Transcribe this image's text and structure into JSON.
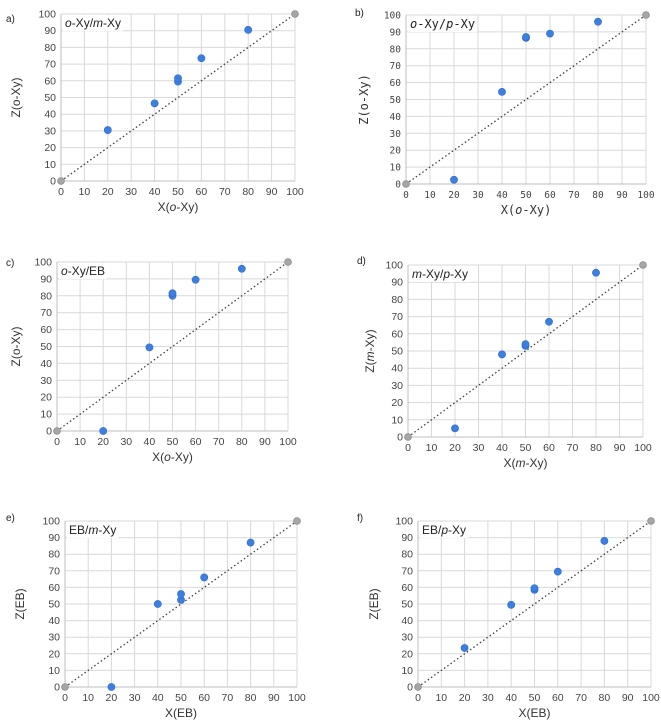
{
  "chart_data": [
    {
      "panel": "a)",
      "type": "scatter",
      "title": "o-Xy/m-Xy",
      "title_parts": [
        {
          "t": "o",
          "i": true
        },
        {
          "t": "-Xy/",
          "i": false
        },
        {
          "t": "m",
          "i": true
        },
        {
          "t": "-Xy",
          "i": false
        }
      ],
      "xlabel": "X(o-Xy)",
      "xlabel_parts": [
        {
          "t": "X(",
          "i": false
        },
        {
          "t": "o",
          "i": true
        },
        {
          "t": "-Xy)",
          "i": false
        }
      ],
      "ylabel": "Z(o-Xy)",
      "ylabel_parts": [
        {
          "t": "Z(o-Xy)",
          "i": false
        }
      ],
      "xlim": [
        0,
        100
      ],
      "ylim": [
        0,
        100
      ],
      "ticks": [
        0,
        10,
        20,
        30,
        40,
        50,
        60,
        70,
        80,
        90,
        100
      ],
      "x": [
        20,
        40,
        50,
        50,
        60,
        80
      ],
      "y": [
        30.5,
        46.5,
        59.5,
        61.5,
        73.5,
        90.5
      ],
      "diagonal_endpoints": [
        [
          0,
          0
        ],
        [
          100,
          100
        ]
      ],
      "monospace": false
    },
    {
      "panel": "b)",
      "type": "scatter",
      "title": "o-Xy/p-Xy",
      "title_parts": [
        {
          "t": "o",
          "i": true
        },
        {
          "t": "-Xy/",
          "i": false
        },
        {
          "t": "p",
          "i": true
        },
        {
          "t": "-Xy",
          "i": false
        }
      ],
      "xlabel": "X(o-Xy)",
      "xlabel_parts": [
        {
          "t": "X(",
          "i": false
        },
        {
          "t": "o",
          "i": true
        },
        {
          "t": "-Xy)",
          "i": false
        }
      ],
      "ylabel": "Z(o-Xy)",
      "ylabel_parts": [
        {
          "t": "Z(o-Xy)",
          "i": false
        }
      ],
      "xlim": [
        0,
        100
      ],
      "ylim": [
        0,
        100
      ],
      "ticks": [
        0,
        10,
        20,
        30,
        40,
        50,
        60,
        70,
        80,
        90,
        100
      ],
      "x": [
        20,
        40,
        50,
        50,
        60,
        80
      ],
      "y": [
        2.5,
        54.5,
        86.5,
        87,
        89,
        96
      ],
      "diagonal_endpoints": [
        [
          0,
          0
        ],
        [
          100,
          100
        ]
      ],
      "monospace": true
    },
    {
      "panel": "c)",
      "type": "scatter",
      "title": "o-Xy/EB",
      "title_parts": [
        {
          "t": "o",
          "i": true
        },
        {
          "t": "-Xy/EB",
          "i": false
        }
      ],
      "xlabel": "X(o-Xy)",
      "xlabel_parts": [
        {
          "t": "X(",
          "i": false
        },
        {
          "t": "o",
          "i": true
        },
        {
          "t": "-Xy)",
          "i": false
        }
      ],
      "ylabel": "Z(o-Xy)",
      "ylabel_parts": [
        {
          "t": "Z(o-Xy)",
          "i": false
        }
      ],
      "xlim": [
        0,
        100
      ],
      "ylim": [
        0,
        100
      ],
      "ticks": [
        0,
        10,
        20,
        30,
        40,
        50,
        60,
        70,
        80,
        90,
        100
      ],
      "x": [
        20,
        40,
        50,
        50,
        60,
        80
      ],
      "y": [
        0,
        49.5,
        80,
        81.5,
        89.5,
        96
      ],
      "diagonal_endpoints": [
        [
          0,
          0
        ],
        [
          100,
          100
        ]
      ],
      "monospace": false
    },
    {
      "panel": "d)",
      "type": "scatter",
      "title": "m-Xy/p-Xy",
      "title_parts": [
        {
          "t": "m",
          "i": true
        },
        {
          "t": "-Xy/",
          "i": false
        },
        {
          "t": "p",
          "i": true
        },
        {
          "t": "-Xy",
          "i": false
        }
      ],
      "xlabel": "X(m-Xy)",
      "xlabel_parts": [
        {
          "t": "X(",
          "i": false
        },
        {
          "t": "m",
          "i": true
        },
        {
          "t": "-Xy)",
          "i": false
        }
      ],
      "ylabel": "Z(m-Xy)",
      "ylabel_parts": [
        {
          "t": "Z(",
          "i": false
        },
        {
          "t": "m",
          "i": true
        },
        {
          "t": "-Xy)",
          "i": false
        }
      ],
      "xlim": [
        0,
        100
      ],
      "ylim": [
        0,
        100
      ],
      "ticks": [
        0,
        10,
        20,
        30,
        40,
        50,
        60,
        70,
        80,
        90,
        100
      ],
      "x": [
        20,
        40,
        50,
        50,
        60,
        80
      ],
      "y": [
        5,
        48,
        53,
        54,
        67,
        95.5
      ],
      "diagonal_endpoints": [
        [
          0,
          0
        ],
        [
          100,
          100
        ]
      ],
      "monospace": false
    },
    {
      "panel": "e)",
      "type": "scatter",
      "title": "EB/m-Xy",
      "title_parts": [
        {
          "t": "EB/",
          "i": false
        },
        {
          "t": "m",
          "i": true
        },
        {
          "t": "-Xy",
          "i": false
        }
      ],
      "xlabel": "X(EB)",
      "xlabel_parts": [
        {
          "t": "X(EB)",
          "i": false
        }
      ],
      "ylabel": "Z(EB)",
      "ylabel_parts": [
        {
          "t": "Z(EB)",
          "i": false
        }
      ],
      "xlim": [
        0,
        100
      ],
      "ylim": [
        0,
        100
      ],
      "ticks": [
        0,
        10,
        20,
        30,
        40,
        50,
        60,
        70,
        80,
        90,
        100
      ],
      "x": [
        20,
        40,
        50,
        50,
        60,
        80
      ],
      "y": [
        0,
        50,
        52.5,
        56,
        66,
        87
      ],
      "diagonal_endpoints": [
        [
          0,
          0
        ],
        [
          100,
          100
        ]
      ],
      "monospace": false
    },
    {
      "panel": "f)",
      "type": "scatter",
      "title": "EB/p-Xy",
      "title_parts": [
        {
          "t": "EB/",
          "i": false
        },
        {
          "t": "p",
          "i": true
        },
        {
          "t": "-Xy",
          "i": false
        }
      ],
      "xlabel": "X(EB)",
      "xlabel_parts": [
        {
          "t": "X(EB)",
          "i": false
        }
      ],
      "ylabel": "Z(EB)",
      "ylabel_parts": [
        {
          "t": "Z(EB)",
          "i": false
        }
      ],
      "xlim": [
        0,
        100
      ],
      "ylim": [
        0,
        100
      ],
      "ticks": [
        0,
        10,
        20,
        30,
        40,
        50,
        60,
        70,
        80,
        90,
        100
      ],
      "x": [
        20,
        40,
        50,
        50,
        60,
        80
      ],
      "y": [
        23.5,
        49.5,
        58.5,
        59.5,
        69.5,
        88
      ],
      "diagonal_endpoints": [
        [
          0,
          0
        ],
        [
          100,
          100
        ]
      ],
      "monospace": false
    }
  ],
  "colors": {
    "point": "#3d7fe0",
    "point_stroke": "#2e6bc9",
    "endpoint": "#a6a6a6",
    "grid": "#d9d9d9",
    "diagonal": "#404040"
  }
}
